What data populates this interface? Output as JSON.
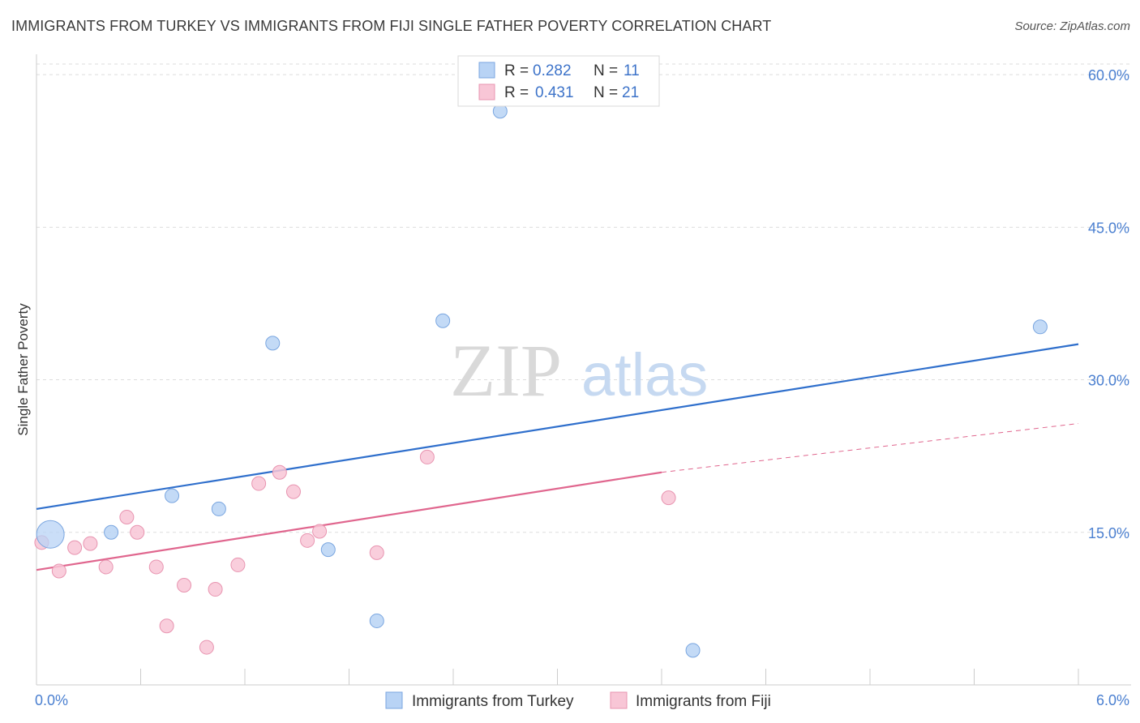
{
  "header": {
    "title": "IMMIGRANTS FROM TURKEY VS IMMIGRANTS FROM FIJI SINGLE FATHER POVERTY CORRELATION CHART",
    "source": "Source: ZipAtlas.com"
  },
  "watermark": {
    "zip": "ZIP",
    "atlas": "atlas"
  },
  "colors": {
    "turkey_fill": "#b8d3f5",
    "turkey_stroke": "#7aa6e0",
    "turkey_line": "#2f6fcc",
    "fiji_fill": "#f8c6d6",
    "fiji_stroke": "#e894b0",
    "fiji_line": "#e0668e",
    "tick": "#4a7fd0",
    "grid": "#dddddd"
  },
  "chart_data": {
    "type": "scatter",
    "title": "IMMIGRANTS FROM TURKEY VS IMMIGRANTS FROM FIJI SINGLE FATHER POVERTY CORRELATION CHART",
    "xlabel": "",
    "ylabel": "Single Father Poverty",
    "xlim": [
      0,
      6
    ],
    "ylim": [
      0,
      62
    ],
    "x_tick_labels": [
      {
        "value": 0,
        "label": "0.0%"
      },
      {
        "value": 6,
        "label": "6.0%"
      }
    ],
    "y_tick_labels": [
      {
        "value": 15,
        "label": "15.0%"
      },
      {
        "value": 30,
        "label": "30.0%"
      },
      {
        "value": 45,
        "label": "45.0%"
      },
      {
        "value": 60,
        "label": "60.0%"
      }
    ],
    "legend": [
      {
        "name": "Immigrants from Turkey",
        "r_label": "R = ",
        "r": "0.282",
        "n_label": "N = ",
        "n": "11"
      },
      {
        "name": "Immigrants from Fiji",
        "r_label": "R = ",
        "r": "0.431",
        "n_label": "N = ",
        "n": "21"
      }
    ],
    "series": [
      {
        "name": "Immigrants from Turkey",
        "points": [
          {
            "x": 0.08,
            "y": 14.8,
            "size": "large"
          },
          {
            "x": 0.43,
            "y": 15.0
          },
          {
            "x": 0.78,
            "y": 18.6
          },
          {
            "x": 1.05,
            "y": 17.3
          },
          {
            "x": 1.36,
            "y": 33.6
          },
          {
            "x": 1.68,
            "y": 13.3
          },
          {
            "x": 1.96,
            "y": 6.3
          },
          {
            "x": 2.34,
            "y": 35.8
          },
          {
            "x": 2.67,
            "y": 56.4
          },
          {
            "x": 3.78,
            "y": 3.4
          },
          {
            "x": 5.78,
            "y": 35.2
          }
        ],
        "trend": {
          "x0": 0,
          "y0": 17.3,
          "x1": 6,
          "y1": 33.5
        }
      },
      {
        "name": "Immigrants from Fiji",
        "points": [
          {
            "x": 0.03,
            "y": 14.0
          },
          {
            "x": 0.13,
            "y": 11.2
          },
          {
            "x": 0.22,
            "y": 13.5
          },
          {
            "x": 0.31,
            "y": 13.9
          },
          {
            "x": 0.4,
            "y": 11.6
          },
          {
            "x": 0.52,
            "y": 16.5
          },
          {
            "x": 0.58,
            "y": 15.0
          },
          {
            "x": 0.69,
            "y": 11.6
          },
          {
            "x": 0.75,
            "y": 5.8
          },
          {
            "x": 0.85,
            "y": 9.8
          },
          {
            "x": 0.98,
            "y": 3.7
          },
          {
            "x": 1.03,
            "y": 9.4
          },
          {
            "x": 1.16,
            "y": 11.8
          },
          {
            "x": 1.28,
            "y": 19.8
          },
          {
            "x": 1.4,
            "y": 20.9
          },
          {
            "x": 1.48,
            "y": 19.0
          },
          {
            "x": 1.56,
            "y": 14.2
          },
          {
            "x": 1.63,
            "y": 15.1
          },
          {
            "x": 1.96,
            "y": 13.0
          },
          {
            "x": 2.25,
            "y": 22.4
          },
          {
            "x": 3.64,
            "y": 18.4
          }
        ],
        "trend": {
          "x0": 0,
          "y0": 11.3,
          "x1": 3.6,
          "y1": 20.9
        },
        "trend_extension": {
          "x0": 3.6,
          "y0": 20.9,
          "x1": 6,
          "y1": 25.7
        }
      }
    ]
  }
}
